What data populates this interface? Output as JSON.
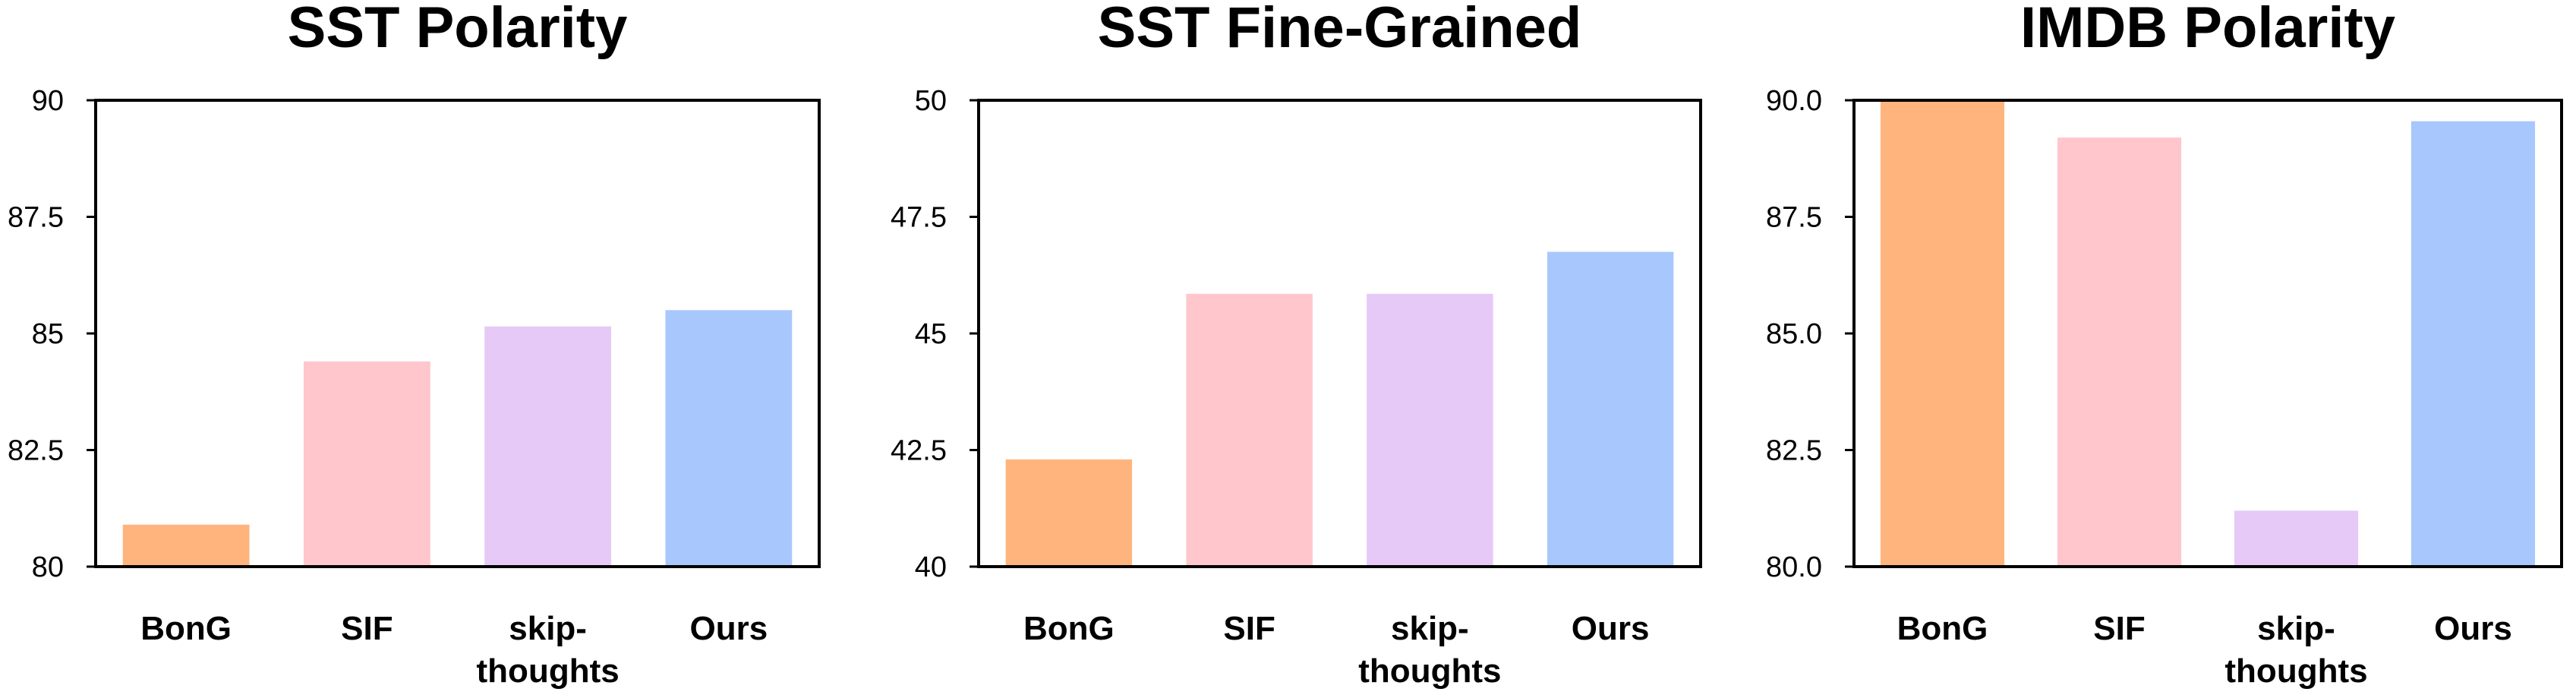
{
  "chart_data": [
    {
      "type": "bar",
      "title": "SST Polarity",
      "categories": [
        "BonG",
        "SIF",
        "skip-thoughts",
        "Ours"
      ],
      "category_lines": [
        [
          "BonG"
        ],
        [
          "SIF"
        ],
        [
          "skip-",
          "thoughts"
        ],
        [
          "Ours"
        ]
      ],
      "values": [
        80.9,
        84.4,
        85.15,
        85.5
      ],
      "colors": [
        "#FFB47E",
        "#FFC6CB",
        "#E6C9F7",
        "#A8C8FD"
      ],
      "ylim": [
        80,
        90
      ],
      "yticks": [
        80,
        82.5,
        85,
        87.5,
        90
      ],
      "ytick_labels": [
        "80",
        "82.5",
        "85",
        "87.5",
        "90"
      ],
      "grid": false,
      "xlabel": "",
      "ylabel": ""
    },
    {
      "type": "bar",
      "title": "SST Fine-Grained",
      "categories": [
        "BonG",
        "SIF",
        "skip-thoughts",
        "Ours"
      ],
      "category_lines": [
        [
          "BonG"
        ],
        [
          "SIF"
        ],
        [
          "skip-",
          "thoughts"
        ],
        [
          "Ours"
        ]
      ],
      "values": [
        42.3,
        45.85,
        45.85,
        46.75
      ],
      "colors": [
        "#FFB47E",
        "#FFC6CB",
        "#E6C9F7",
        "#A8C8FD"
      ],
      "ylim": [
        40,
        50
      ],
      "yticks": [
        40,
        42.5,
        45,
        47.5,
        50
      ],
      "ytick_labels": [
        "40",
        "42.5",
        "45",
        "47.5",
        "50"
      ],
      "grid": false,
      "xlabel": "",
      "ylabel": ""
    },
    {
      "type": "bar",
      "title": "IMDB Polarity",
      "categories": [
        "BonG",
        "SIF",
        "skip-thoughts",
        "Ours"
      ],
      "category_lines": [
        [
          "BonG"
        ],
        [
          "SIF"
        ],
        [
          "skip-",
          "thoughts"
        ],
        [
          "Ours"
        ]
      ],
      "values": [
        90.0,
        89.2,
        81.2,
        89.55
      ],
      "colors": [
        "#FFB47E",
        "#FFC6CB",
        "#E6C9F7",
        "#A8C8FD"
      ],
      "ylim": [
        80,
        90
      ],
      "yticks": [
        80,
        82.5,
        85,
        87.5,
        90
      ],
      "ytick_labels": [
        "80.0",
        "82.5",
        "85.0",
        "87.5",
        "90.0"
      ],
      "grid": false,
      "xlabel": "",
      "ylabel": ""
    }
  ]
}
